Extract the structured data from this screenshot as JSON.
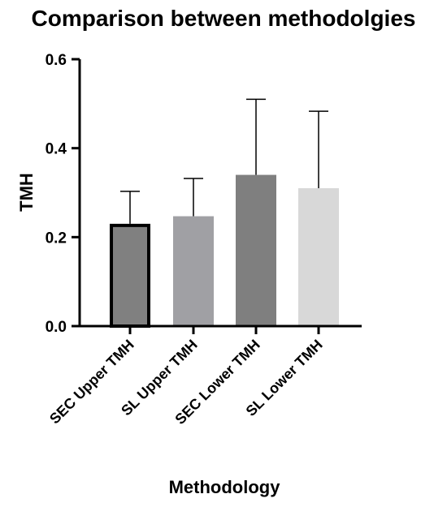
{
  "chart_data": {
    "type": "bar",
    "title": "Comparison between methodolgies",
    "xlabel": "Methodology",
    "ylabel": "TMH",
    "ylim": [
      0,
      0.6
    ],
    "yticks": [
      "0.0",
      "0.2",
      "0.4",
      "0.6"
    ],
    "ytick_values": [
      0,
      0.2,
      0.4,
      0.6
    ],
    "categories": [
      "SEC Upper TMH",
      "SL Upper TMH",
      "SEC Lower TMH",
      "SL Lower TMH"
    ],
    "values": [
      0.23,
      0.247,
      0.34,
      0.31
    ],
    "error_upper": [
      0.073,
      0.085,
      0.17,
      0.173
    ],
    "colors": [
      "#808080",
      "#a0a0a4",
      "#7f7f7f",
      "#d8d8d8"
    ],
    "highlighted_bar_index": 0,
    "grid": false,
    "legend": "none"
  }
}
